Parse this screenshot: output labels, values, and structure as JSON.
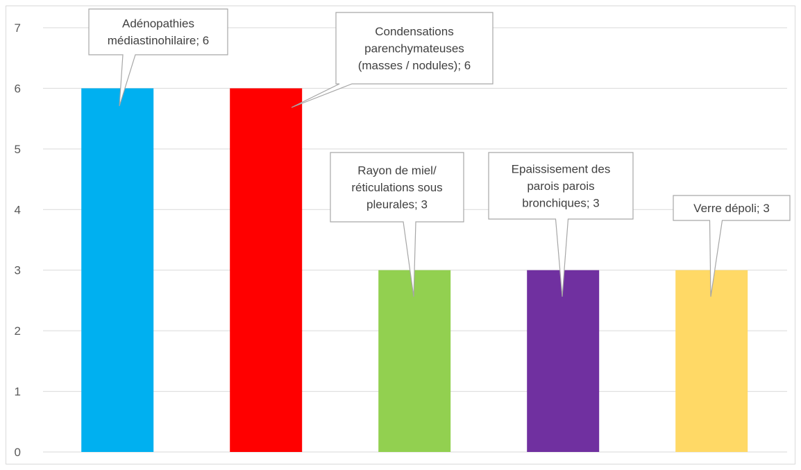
{
  "chart_data": {
    "type": "bar",
    "title": "",
    "xlabel": "",
    "ylabel": "",
    "ylim": [
      0,
      7
    ],
    "yticks": [
      0,
      1,
      2,
      3,
      4,
      5,
      6,
      7
    ],
    "grid": true,
    "legend": "none",
    "categories": [
      "Adénopathies médiastinohilaire",
      "Condensations parenchymateuses (masses / nodules)",
      "Rayon de miel/ réticulations sous pleurales",
      "Epaissisement des parois parois bronchiques",
      "Verre dépoli"
    ],
    "values": [
      6,
      6,
      3,
      3,
      3
    ],
    "colors": [
      "#00b0f0",
      "#ff0000",
      "#92d050",
      "#7030a0",
      "#ffd966"
    ],
    "data_labels": [
      [
        "Adénopathies",
        "médiastinohilaire; 6"
      ],
      [
        "Condensations",
        "parenchymateuses",
        "(masses / nodules); 6"
      ],
      [
        "Rayon de miel/",
        "réticulations sous",
        "pleurales; 3"
      ],
      [
        "Epaissisement des",
        "parois parois",
        "bronchiques; 3"
      ],
      [
        "Verre dépoli; 3"
      ]
    ]
  }
}
